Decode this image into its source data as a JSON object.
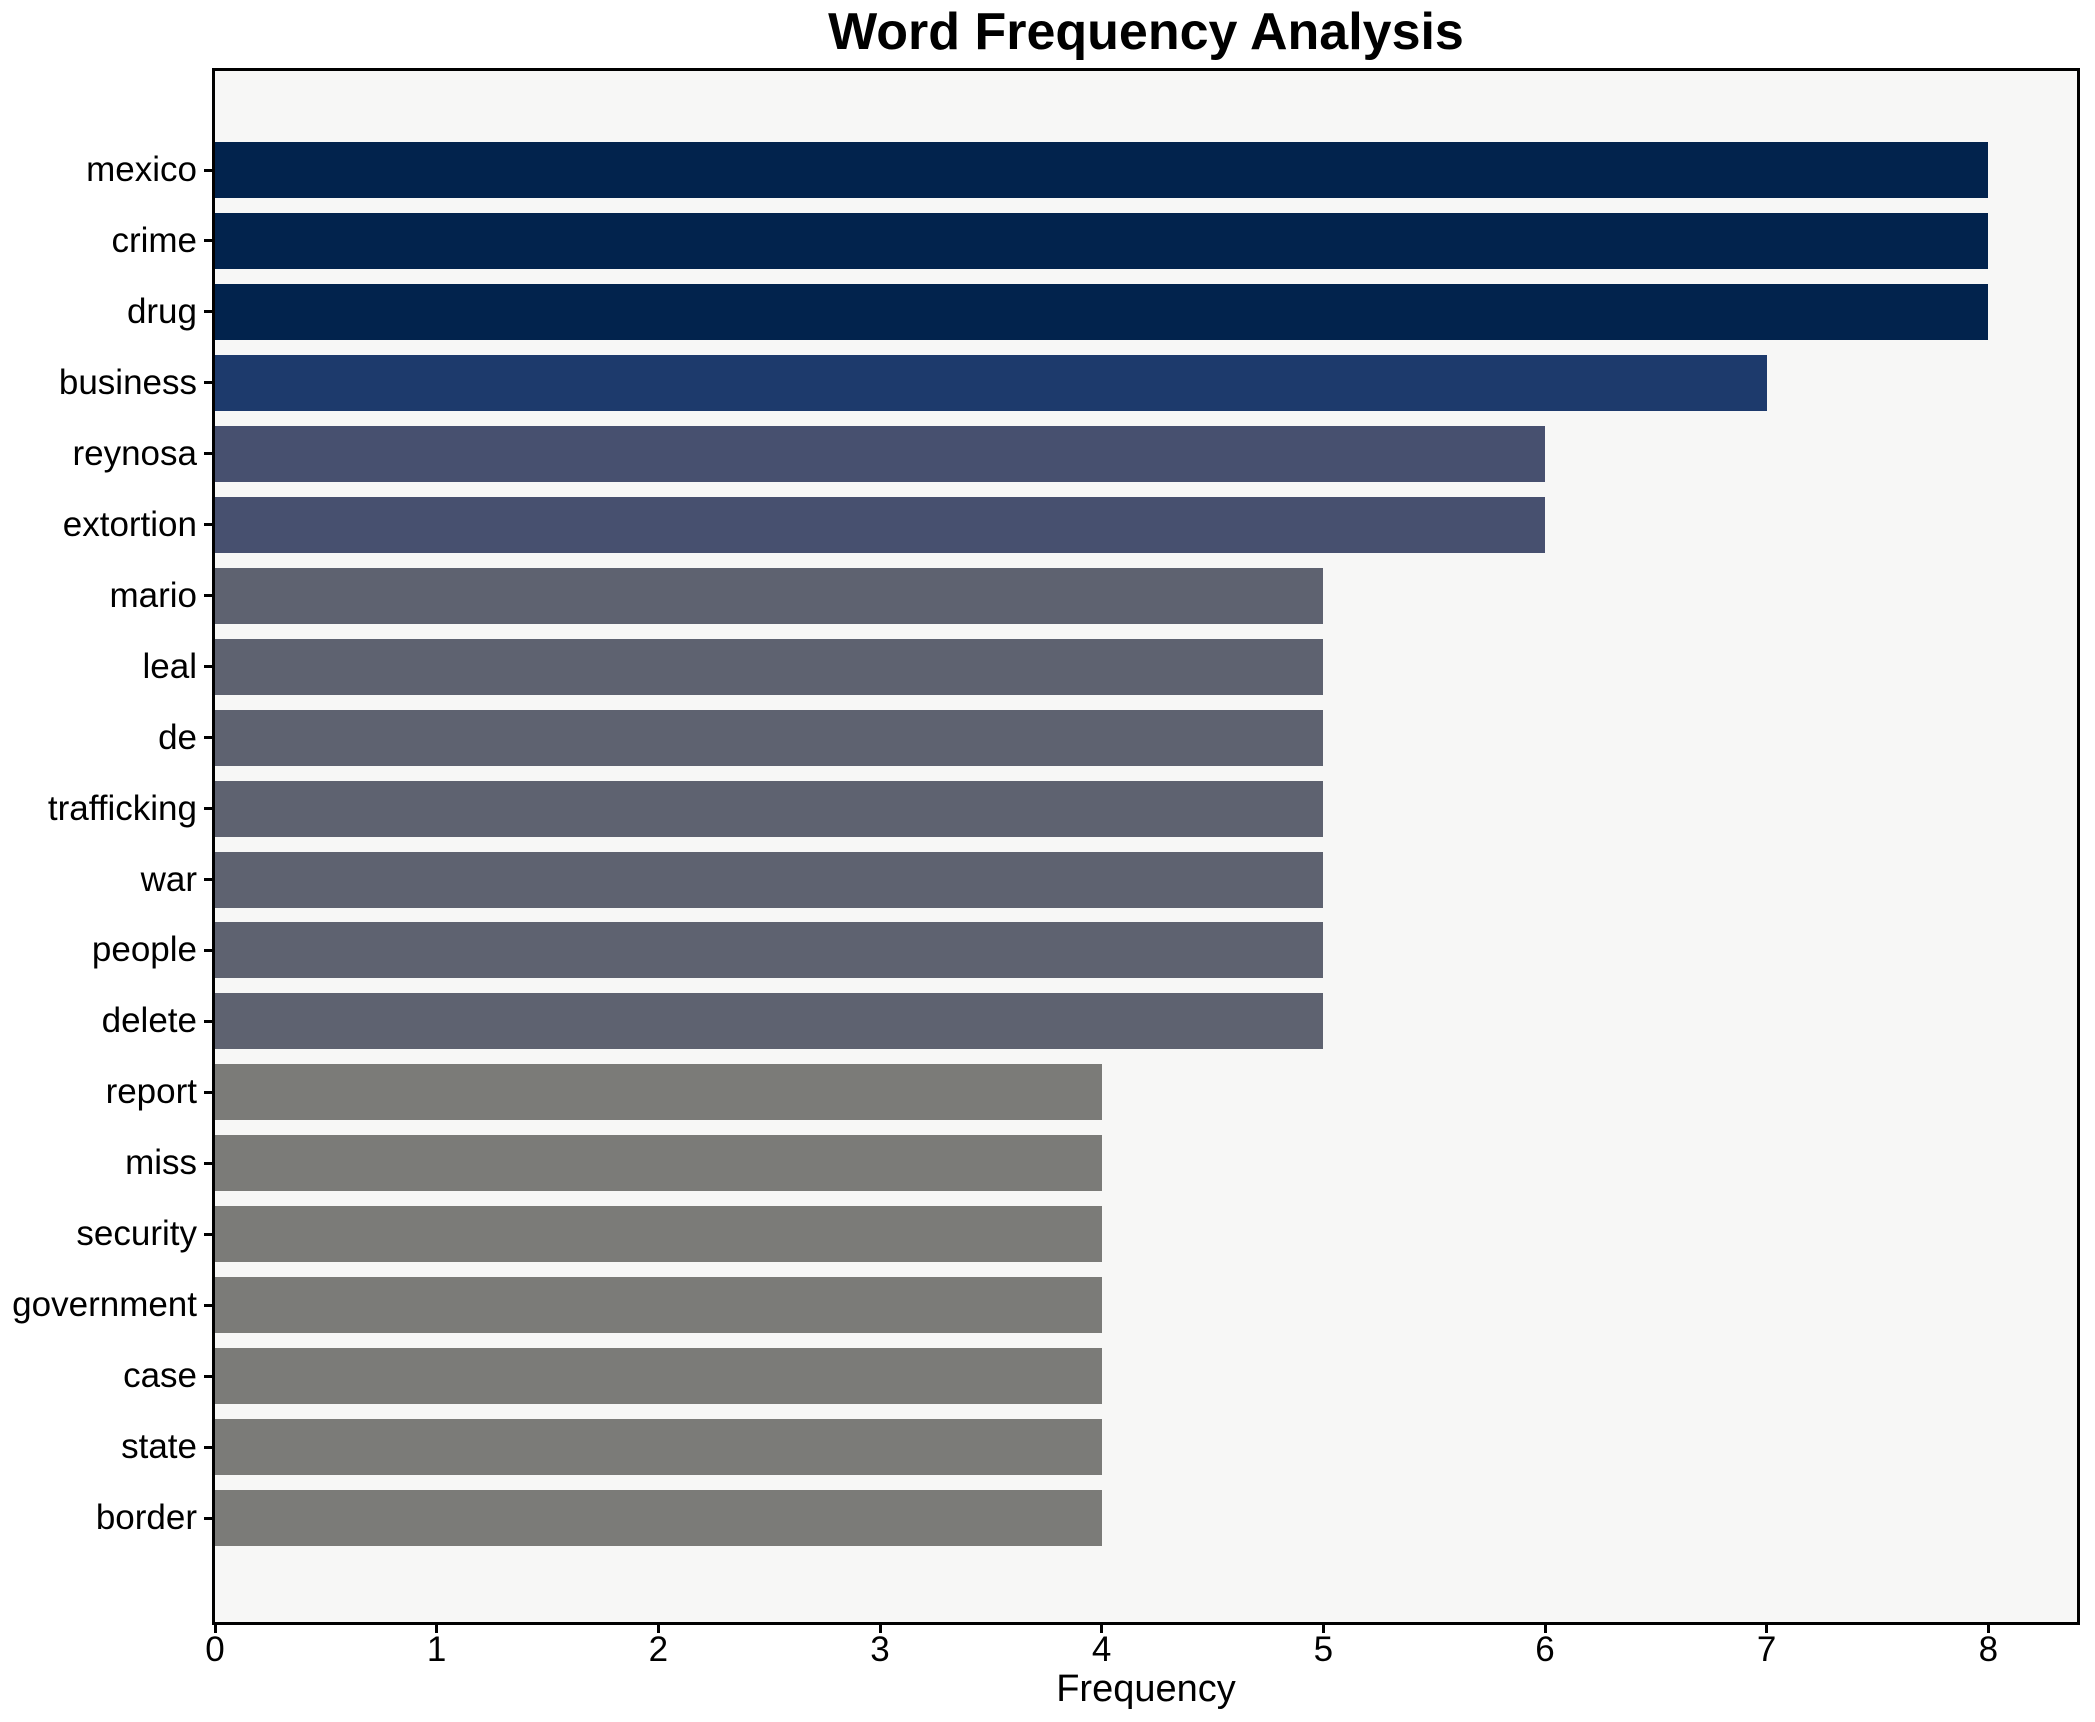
{
  "chart_data": {
    "type": "bar",
    "orientation": "horizontal",
    "title": "Word Frequency Analysis",
    "xlabel": "Frequency",
    "ylabel": "",
    "categories": [
      "mexico",
      "crime",
      "drug",
      "business",
      "reynosa",
      "extortion",
      "mario",
      "leal",
      "de",
      "trafficking",
      "war",
      "people",
      "delete",
      "report",
      "miss",
      "security",
      "government",
      "case",
      "state",
      "border"
    ],
    "values": [
      8,
      8,
      8,
      7,
      6,
      6,
      5,
      5,
      5,
      5,
      5,
      5,
      5,
      4,
      4,
      4,
      4,
      4,
      4,
      4
    ],
    "xticks": [
      "0",
      "1",
      "2",
      "3",
      "4",
      "5",
      "6",
      "7",
      "8"
    ],
    "xlim": [
      0,
      8.4
    ],
    "grid": false,
    "legend": null,
    "colors_by_value": {
      "8": "#02234d",
      "7": "#1d3a6c",
      "6": "#47506f",
      "5": "#5e6270",
      "4": "#7b7b78"
    },
    "plot_background": "#f7f7f6",
    "figure_background": "#ffffff",
    "spine_color": "#000000"
  }
}
